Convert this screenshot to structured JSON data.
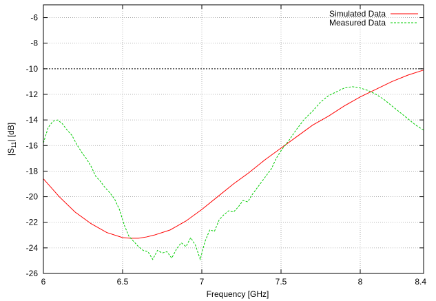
{
  "chart_data": {
    "type": "line",
    "xlabel": "Frequency    [GHz]",
    "ylabel_prefix": "|S",
    "ylabel_sub": "11",
    "ylabel_suffix": "|    [dB]",
    "xlim": [
      6,
      8.4
    ],
    "ylim": [
      -26,
      -5
    ],
    "xticks": [
      6,
      6.5,
      7,
      7.5,
      8,
      8.4
    ],
    "xtick_labels": [
      "6",
      "6.5",
      "7",
      "7.5",
      "8",
      "8.4"
    ],
    "yticks": [
      -26,
      -24,
      -22,
      -20,
      -18,
      -16,
      -14,
      -12,
      -10,
      -8,
      -6
    ],
    "ytick_labels": [
      "-26",
      "-24",
      "-22",
      "-20",
      "-18",
      "-16",
      "-14",
      "-12",
      "-10",
      "-8",
      "-6"
    ],
    "grid": true,
    "legend_position": "top-right",
    "reference_line": {
      "y": -10,
      "color": "#000000",
      "style": "dashed"
    },
    "series": [
      {
        "name": "Simulated Data",
        "color": "#ff0000",
        "style": "solid",
        "x": [
          6.0,
          6.1,
          6.2,
          6.3,
          6.4,
          6.5,
          6.55,
          6.6,
          6.65,
          6.7,
          6.8,
          6.9,
          7.0,
          7.1,
          7.2,
          7.3,
          7.4,
          7.5,
          7.6,
          7.7,
          7.8,
          7.9,
          8.0,
          8.1,
          8.2,
          8.3,
          8.4
        ],
        "y": [
          -18.6,
          -20.0,
          -21.2,
          -22.1,
          -22.8,
          -23.2,
          -23.25,
          -23.25,
          -23.15,
          -23.0,
          -22.6,
          -21.9,
          -21.0,
          -20.0,
          -19.0,
          -18.1,
          -17.1,
          -16.2,
          -15.3,
          -14.4,
          -13.7,
          -12.9,
          -12.2,
          -11.6,
          -11.0,
          -10.5,
          -10.1
        ]
      },
      {
        "name": "Measured Data",
        "color": "#00cc00",
        "style": "dashed",
        "x": [
          6.0,
          6.03,
          6.06,
          6.09,
          6.12,
          6.15,
          6.18,
          6.21,
          6.24,
          6.27,
          6.3,
          6.33,
          6.36,
          6.39,
          6.42,
          6.45,
          6.48,
          6.51,
          6.54,
          6.57,
          6.6,
          6.63,
          6.66,
          6.69,
          6.72,
          6.75,
          6.78,
          6.81,
          6.84,
          6.87,
          6.9,
          6.93,
          6.96,
          6.99,
          7.02,
          7.05,
          7.08,
          7.11,
          7.14,
          7.17,
          7.2,
          7.23,
          7.26,
          7.29,
          7.32,
          7.35,
          7.38,
          7.41,
          7.44,
          7.47,
          7.5,
          7.55,
          7.6,
          7.65,
          7.7,
          7.75,
          7.8,
          7.85,
          7.9,
          7.95,
          8.0,
          8.05,
          8.1,
          8.15,
          8.2,
          8.25,
          8.3,
          8.35,
          8.4
        ],
        "y": [
          -15.8,
          -14.6,
          -14.1,
          -14.0,
          -14.3,
          -14.8,
          -15.2,
          -15.9,
          -16.5,
          -17.0,
          -17.6,
          -18.4,
          -18.8,
          -19.3,
          -19.7,
          -20.2,
          -21.0,
          -22.2,
          -23.1,
          -23.5,
          -23.9,
          -24.2,
          -24.3,
          -24.9,
          -24.2,
          -24.4,
          -24.3,
          -24.8,
          -24.1,
          -23.6,
          -23.9,
          -23.2,
          -23.8,
          -24.9,
          -23.5,
          -22.6,
          -22.7,
          -21.8,
          -21.4,
          -21.1,
          -21.2,
          -20.8,
          -20.3,
          -20.4,
          -19.8,
          -19.3,
          -18.8,
          -18.3,
          -17.8,
          -17.0,
          -16.4,
          -15.6,
          -14.7,
          -13.9,
          -13.3,
          -12.6,
          -12.1,
          -11.8,
          -11.5,
          -11.4,
          -11.5,
          -11.7,
          -12.0,
          -12.4,
          -12.9,
          -13.4,
          -13.9,
          -14.4,
          -14.8
        ]
      }
    ]
  }
}
